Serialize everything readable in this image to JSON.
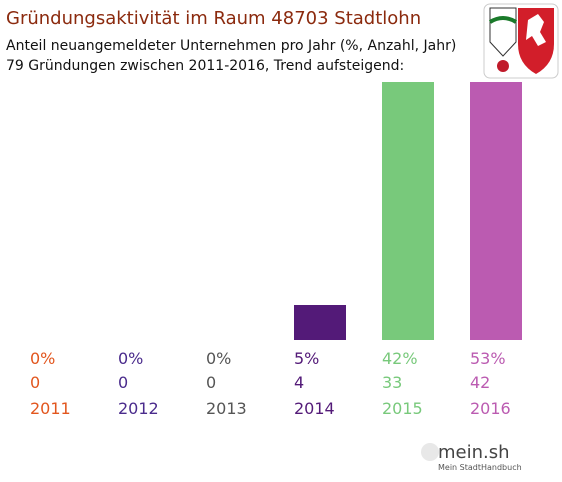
{
  "chart_data": {
    "type": "bar",
    "title": "Gründungsaktivität im Raum 48703 Stadtlohn",
    "subtitle": [
      "Anteil neuangemeldeter Unternehmen pro Jahr (%, Anzahl, Jahr)",
      "79 Gründungen zwischen 2011-2016, Trend aufsteigend:"
    ],
    "categories": [
      "2011",
      "2012",
      "2013",
      "2014",
      "2015",
      "2016"
    ],
    "values": [
      0,
      0,
      0,
      5,
      42,
      53
    ],
    "value_labels": [
      "0%",
      "0%",
      "0%",
      "5%",
      "42%",
      "53%"
    ],
    "counts": [
      0,
      0,
      0,
      4,
      33,
      42
    ],
    "colors": [
      "#e2561e",
      "#4a2b8c",
      "#555555",
      "#531a78",
      "#78c97b",
      "#bb5bb1"
    ],
    "brand": {
      "name": "mein.sh",
      "tagline": "Mein StadtHandbuch"
    }
  }
}
